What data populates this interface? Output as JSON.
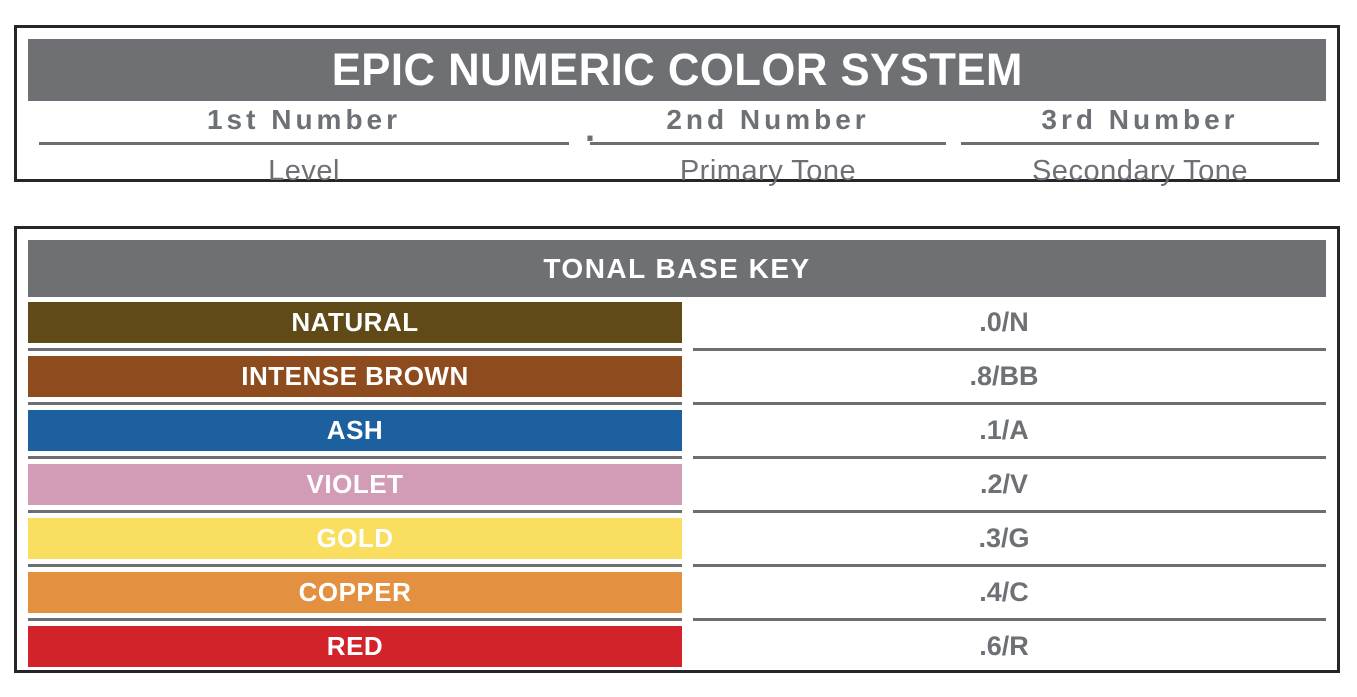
{
  "header": {
    "title": "EPIC NUMERIC COLOR SYSTEM",
    "separator": ".",
    "columns": [
      {
        "number": "1st Number",
        "label": "Level"
      },
      {
        "number": "2nd Number",
        "label": "Primary Tone"
      },
      {
        "number": "3rd Number",
        "label": "Secondary Tone"
      }
    ]
  },
  "tonal_base_key": {
    "title": "TONAL BASE KEY",
    "rows": [
      {
        "name": "NATURAL",
        "code": ".0/N",
        "color": "#604a17"
      },
      {
        "name": "INTENSE BROWN",
        "code": ".8/BB",
        "color": "#8e4c1e"
      },
      {
        "name": "ASH",
        "code": ".1/A",
        "color": "#1d60a0"
      },
      {
        "name": "VIOLET",
        "code": ".2/V",
        "color": "#d29cb6"
      },
      {
        "name": "GOLD",
        "code": ".3/G",
        "color": "#fade60"
      },
      {
        "name": "COPPER",
        "code": ".4/C",
        "color": "#e39140"
      },
      {
        "name": "RED",
        "code": ".6/R",
        "color": "#d2232b"
      }
    ]
  },
  "colors": {
    "header_bar_gray": "#6e7074",
    "text_gray": "#6d7074",
    "divider_gray": "#6d6e71",
    "panel_border": "#26262a"
  }
}
